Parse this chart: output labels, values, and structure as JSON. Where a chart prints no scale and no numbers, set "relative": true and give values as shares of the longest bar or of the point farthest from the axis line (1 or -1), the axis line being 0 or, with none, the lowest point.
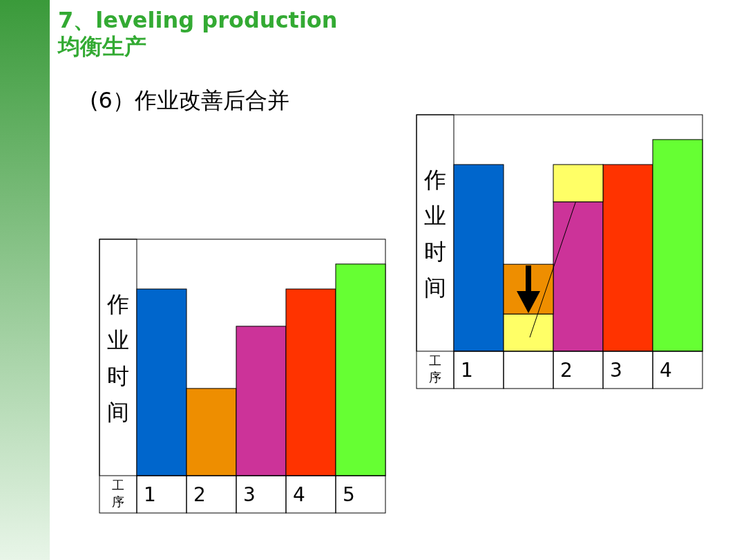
{
  "chart_data": [
    {
      "type": "bar",
      "title": "7、leveling production",
      "subtitle": "均衡生产",
      "annotations": [
        "(6）作业改善后合并"
      ],
      "ylabel": "作业时间",
      "xlabel": "工序",
      "relative": true,
      "categories": [
        "1",
        "2",
        "3",
        "4",
        "5"
      ],
      "values": [
        0.882,
        0.412,
        0.706,
        0.882,
        1
      ],
      "colors": [
        "#0066cc",
        "#ee8e00",
        "#cc3399",
        "#ff3300",
        "#66ff33"
      ]
    },
    {
      "type": "bar",
      "ylabel": "作业时间",
      "xlabel": "工序",
      "relative": true,
      "stacked": true,
      "categories": [
        "1",
        null,
        "2",
        "3",
        "4"
      ],
      "series": [
        {
          "colors": [
            "#0066cc",
            "#ffff66",
            "#cc3399",
            "#ff3300",
            "#66ff33"
          ],
          "values": [
            0.882,
            0.176,
            0.706,
            0.882,
            1
          ]
        },
        {
          "colors": [
            null,
            "#ee8e00",
            "#ffff66",
            null,
            null
          ],
          "values": [
            null,
            0.235,
            0.176,
            null,
            null
          ]
        }
      ]
    }
  ]
}
